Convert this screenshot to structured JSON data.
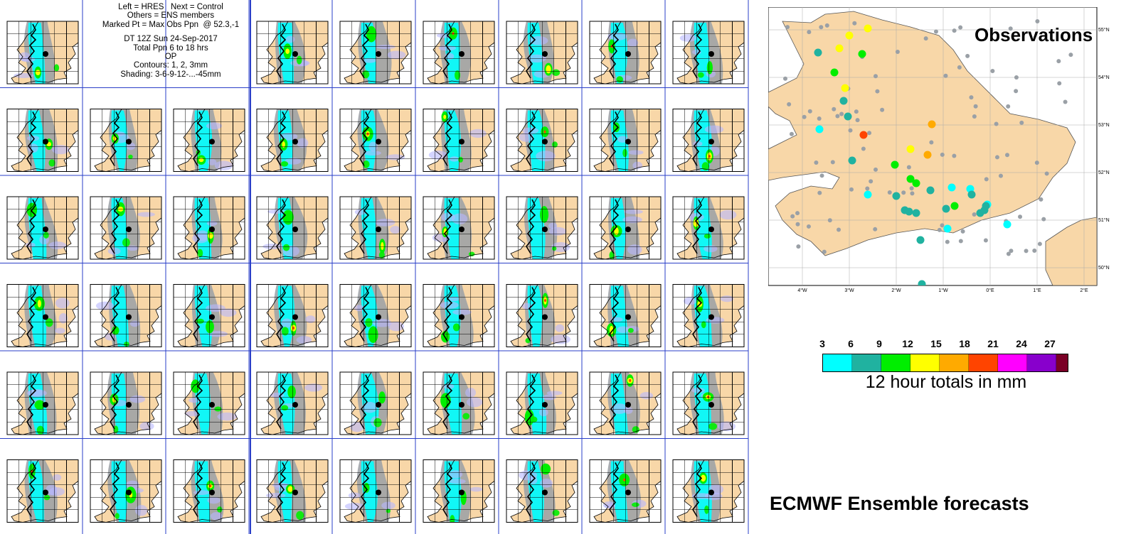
{
  "info_box": {
    "line1": "Left = HRES   Next = Control",
    "line2": "Others = ENS members",
    "line3": "Marked Pt = Max Obs Ppn  @ 52.3,-1",
    "line4": "DT 12Z Sun 24-Sep-2017",
    "line5": "Total Ppn 6 to 18 hrs",
    "line6": "OP",
    "line7": "Contours: 1, 2, 3mm",
    "line8": "Shading: 3-6-9-12-...-45mm"
  },
  "observations": {
    "title": "Observations",
    "lon_labels": [
      "4°W",
      "3°W",
      "2°W",
      "1°W",
      "0°E",
      "1°E",
      "2°E"
    ],
    "lat_labels": [
      "55°N",
      "54°N",
      "53°N",
      "52°N",
      "51°N",
      "50°N"
    ],
    "marked_point": {
      "lat": 52.3,
      "lon": -1
    }
  },
  "legend": {
    "ticks": [
      "3",
      "6",
      "9",
      "12",
      "15",
      "18",
      "21",
      "24",
      "27"
    ],
    "colors": [
      "#00ffff",
      "#20b2a0",
      "#00ee00",
      "#ffff00",
      "#ffaa00",
      "#ff4400",
      "#ff00ff",
      "#8800cc",
      "#7a0026"
    ],
    "caption": "12 hour totals in mm"
  },
  "footer": "ECMWF Ensemble forecasts",
  "colors": {
    "land": "#f8d7a8",
    "sea": "#ffffff",
    "grid_line": "#2a3fc8",
    "grey_shade": "#9aa0a6"
  }
}
